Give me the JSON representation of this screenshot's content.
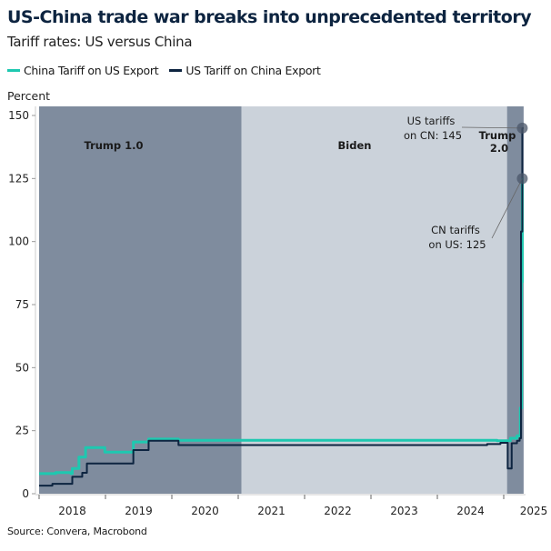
{
  "chart_data": {
    "type": "line",
    "title": "US-China trade war breaks into unprecedented territory",
    "subtitle": "Tariff rates: US versus China",
    "ylabel": "Percent",
    "ylim": [
      0,
      150
    ],
    "yticks": [
      0,
      25,
      50,
      75,
      100,
      125,
      150
    ],
    "xlim": [
      2018.0,
      2025.3
    ],
    "xticks": [
      "2018",
      "2019",
      "2020",
      "2021",
      "2022",
      "2023",
      "2024",
      "2025"
    ],
    "legend_position": "top-left",
    "grid": false,
    "regions": [
      {
        "label": "Trump 1.0",
        "from": 2018.0,
        "to": 2021.05,
        "color": "#7f8c9e"
      },
      {
        "label": "Biden",
        "from": 2021.05,
        "to": 2025.05,
        "color": "#cbd2da"
      },
      {
        "label": "Trump 2.0",
        "from": 2025.05,
        "to": 2025.3,
        "color": "#7f8c9e"
      }
    ],
    "series": [
      {
        "name": "China Tariff on US Export",
        "color": "#1ec8b0",
        "step": true,
        "x": [
          2018.0,
          2018.25,
          2018.48,
          2018.5,
          2018.6,
          2018.7,
          2018.99,
          2019.42,
          2019.65,
          2020.1,
          2024.9,
          2025.1,
          2025.2,
          2025.25,
          2025.27,
          2025.28,
          2025.3
        ],
        "y": [
          8,
          8.4,
          8,
          10,
          14.5,
          18.3,
          16.5,
          20.5,
          21.7,
          21.2,
          21,
          22,
          23,
          34,
          84,
          125,
          125
        ]
      },
      {
        "name": "US Tariff on China Export",
        "color": "#0d2440",
        "step": true,
        "x": [
          2018.0,
          2018.2,
          2018.5,
          2018.65,
          2018.72,
          2019.42,
          2019.65,
          2020.1,
          2024.75,
          2024.95,
          2025.06,
          2025.12,
          2025.2,
          2025.24,
          2025.26,
          2025.28,
          2025.3
        ],
        "y": [
          3.2,
          3.9,
          6.7,
          8.3,
          12,
          17.3,
          21,
          19.3,
          19.7,
          20.2,
          10,
          20,
          21,
          22,
          104,
          145,
          145
        ]
      }
    ],
    "annotations": [
      {
        "text": [
          "US tariffs",
          "on CN: 145"
        ],
        "x": 2025.28,
        "y": 145
      },
      {
        "text": [
          "CN tariffs",
          "on US: 125"
        ],
        "x": 2025.28,
        "y": 125
      }
    ],
    "source": "Source: Convera, Macrobond"
  }
}
